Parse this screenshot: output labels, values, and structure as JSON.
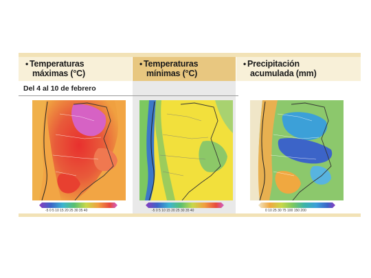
{
  "period": "Del 4 al 10 de febrero",
  "panels": [
    {
      "id": "max",
      "title_line1": "Temperaturas",
      "title_line2": "máximas (°C)",
      "scale_label": "-5 0 5 10 15 20 25 30 35 40"
    },
    {
      "id": "min",
      "title_line1": "Temperaturas",
      "title_line2": "mínimas (°C)",
      "scale_label": "-5 0 5 10 15 20 25 30 35 40"
    },
    {
      "id": "precip",
      "title_line1": "Precipitación",
      "title_line2": "acumulada (mm)",
      "scale_label": "0 10 25 30 75 100 150 200"
    }
  ],
  "colors": {
    "band": "#f2e2b6",
    "header_light": "#f8f0d8",
    "header_gold": "#e8c780",
    "hot_red": "#e84a3c",
    "orange": "#f0a040",
    "yellow": "#f2e23c",
    "green": "#9ccc64",
    "teal": "#3cb4a8",
    "blue": "#3c64c8",
    "magenta": "#d060c8"
  }
}
